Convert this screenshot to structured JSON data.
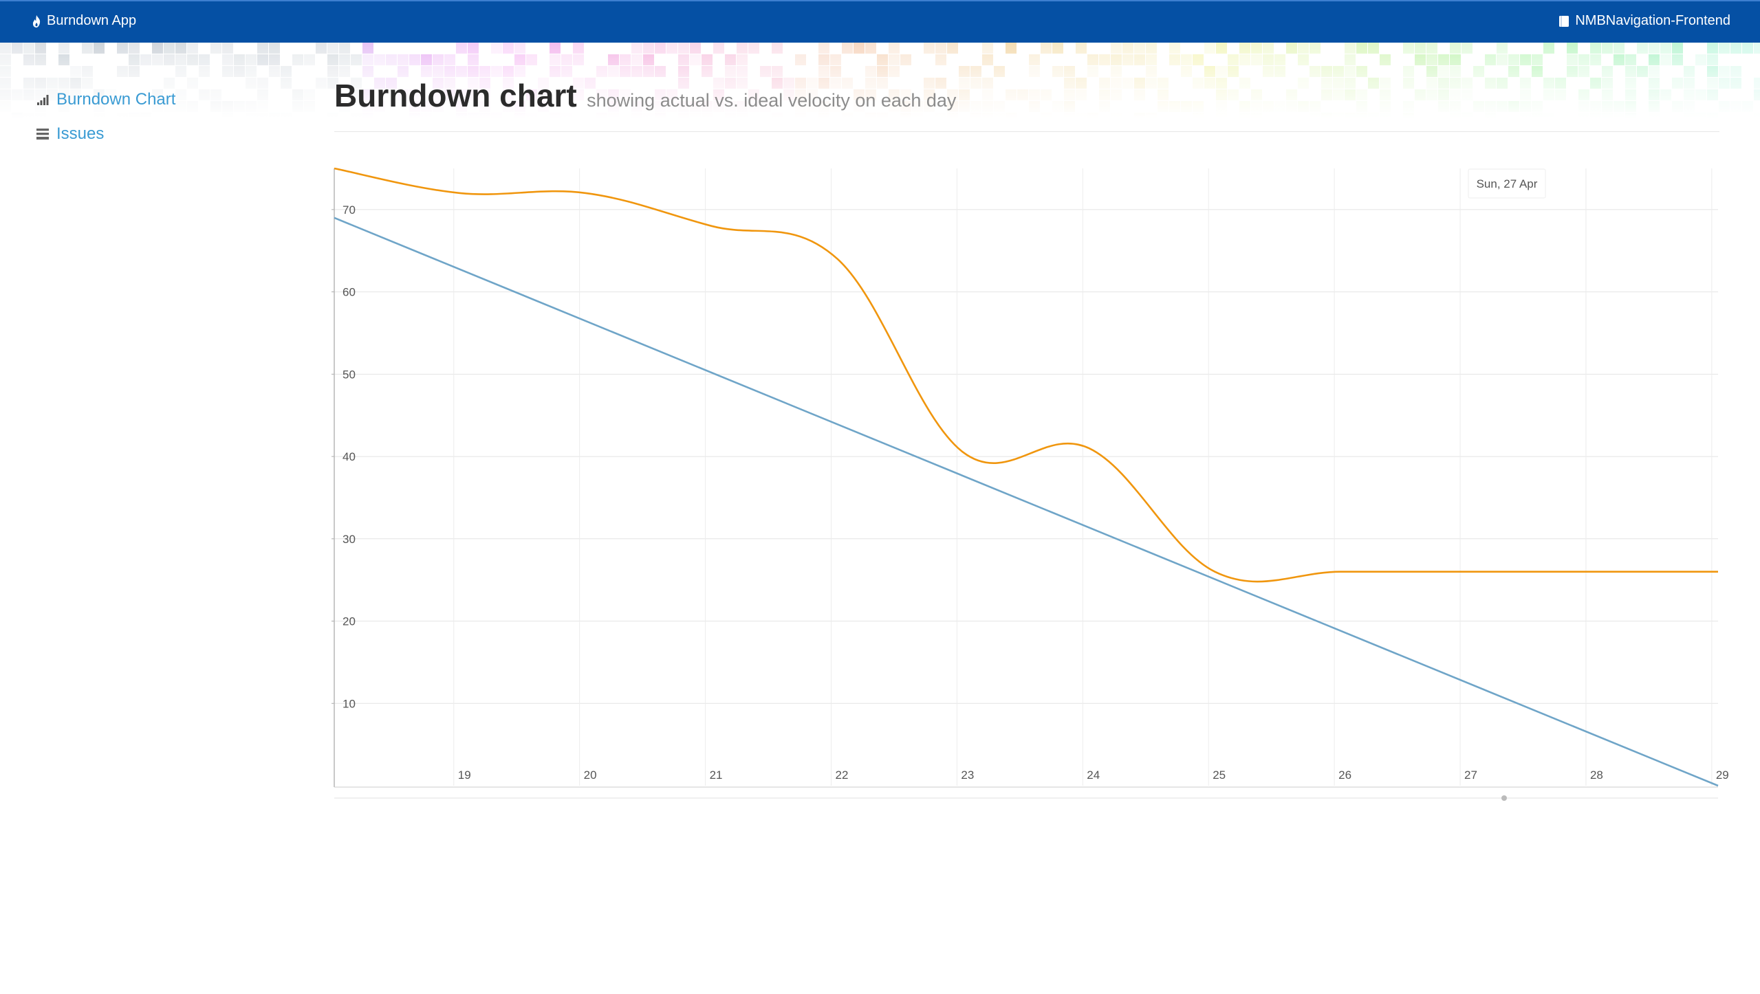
{
  "navbar": {
    "brand": "Burndown App",
    "brand_icon": "fire-icon",
    "project": "NMBNavigation-Frontend",
    "project_icon": "book-icon",
    "bg_color": "#0550a4"
  },
  "sidebar": {
    "items": [
      {
        "label": "Burndown Chart",
        "icon": "bar-chart-icon"
      },
      {
        "label": "Issues",
        "icon": "list-icon"
      }
    ],
    "link_color": "#3a9bd3"
  },
  "header": {
    "title": "Burndown chart",
    "subtitle": "showing actual vs. ideal velocity on each day"
  },
  "chart_data": {
    "type": "line",
    "title": "",
    "xlabel": "",
    "ylabel": "",
    "x_ticks": [
      "19",
      "20",
      "21",
      "22",
      "23",
      "24",
      "25",
      "26",
      "27",
      "28",
      "29"
    ],
    "y_ticks": [
      10,
      20,
      30,
      40,
      50,
      60,
      70
    ],
    "xlim": [
      18.05,
      29.05
    ],
    "ylim": [
      0,
      75
    ],
    "grid": true,
    "tooltip": "Sun, 27 Apr",
    "series": [
      {
        "color": "#f0960e",
        "points": [
          [
            18.05,
            75
          ],
          [
            19.05,
            72
          ],
          [
            20.05,
            72
          ],
          [
            21.05,
            68
          ],
          [
            22.05,
            64
          ],
          [
            23.05,
            40.5
          ],
          [
            24.05,
            41
          ],
          [
            25.05,
            26
          ],
          [
            26.05,
            26
          ],
          [
            27.05,
            26
          ],
          [
            28.05,
            26
          ],
          [
            29.05,
            26
          ]
        ]
      },
      {
        "color": "#6fa5c8",
        "points": [
          [
            18.05,
            69
          ],
          [
            29.05,
            0
          ]
        ]
      }
    ]
  }
}
